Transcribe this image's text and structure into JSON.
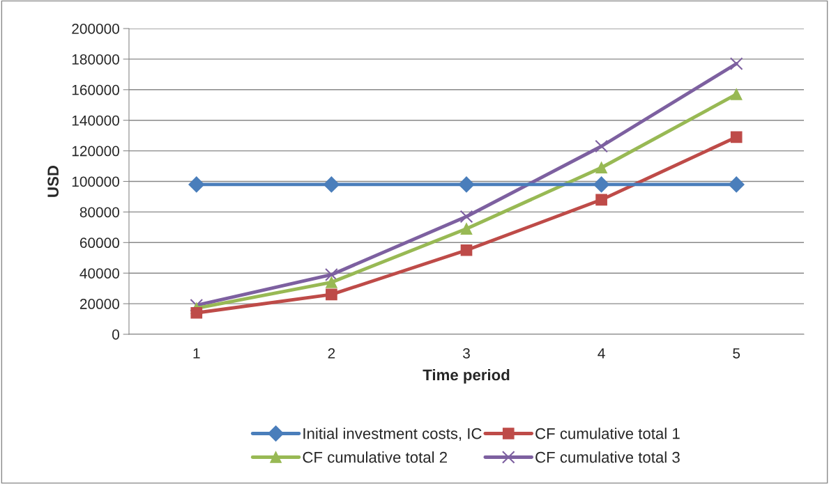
{
  "chart_data": {
    "type": "line",
    "xlabel": "Time period",
    "ylabel": "USD",
    "categories": [
      "1",
      "2",
      "3",
      "4",
      "5"
    ],
    "series": [
      {
        "name": "Initial investment costs, IC",
        "color": "#4a7ebb",
        "marker": "diamond",
        "values": [
          98000,
          98000,
          98000,
          98000,
          98000
        ]
      },
      {
        "name": "CF cumulative total 1",
        "color": "#be4b48",
        "marker": "square",
        "values": [
          14000,
          26000,
          55000,
          88000,
          129000
        ]
      },
      {
        "name": "CF cumulative total 2",
        "color": "#98b954",
        "marker": "triangle",
        "values": [
          17000,
          34000,
          69000,
          109000,
          157000
        ]
      },
      {
        "name": "CF cumulative total 3",
        "color": "#7d60a0",
        "marker": "cross",
        "values": [
          19000,
          39000,
          77000,
          123000,
          177000
        ]
      }
    ],
    "ylim": [
      0,
      200000
    ],
    "yticks": [
      0,
      20000,
      40000,
      60000,
      80000,
      100000,
      120000,
      140000,
      160000,
      180000,
      200000
    ],
    "grid": "y",
    "legend": "bottom",
    "line_style": "solid"
  }
}
